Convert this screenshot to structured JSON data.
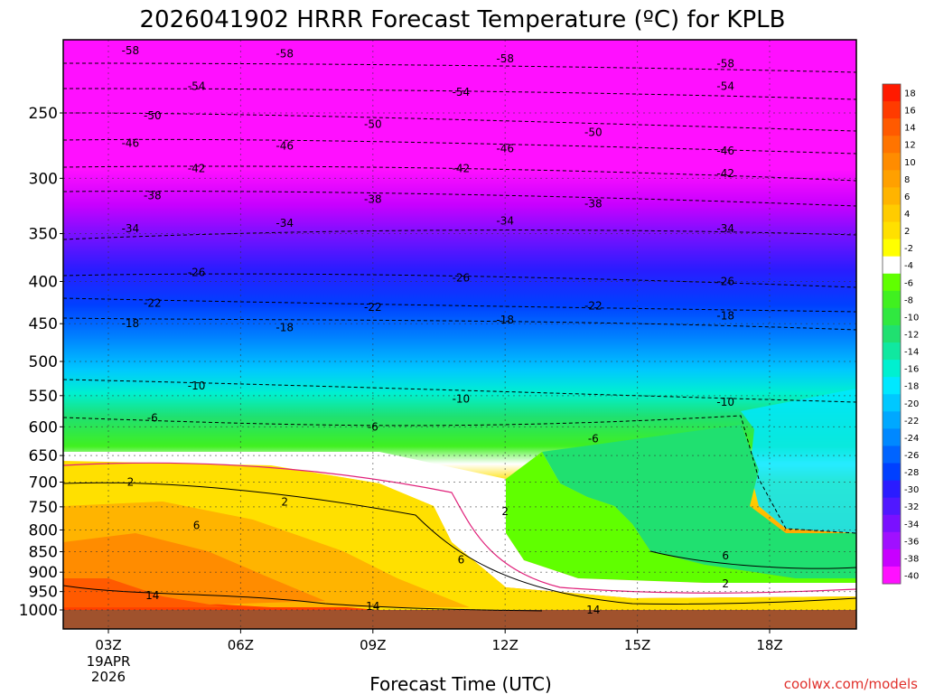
{
  "chart_data": {
    "type": "heatmap",
    "title": "2026041902 HRRR Forecast Temperature (ºC) for KPLB",
    "xlabel": "Forecast Time (UTC)",
    "ylabel": "",
    "credit": "coolwx.com/models",
    "x_ticks": [
      {
        "label": "03Z",
        "hours": 3,
        "sub": [
          "19APR",
          "2026"
        ]
      },
      {
        "label": "06Z",
        "hours": 6
      },
      {
        "label": "09Z",
        "hours": 9
      },
      {
        "label": "12Z",
        "hours": 12
      },
      {
        "label": "15Z",
        "hours": 15
      },
      {
        "label": "18Z",
        "hours": 18
      }
    ],
    "xlim_hours": [
      2,
      20
    ],
    "y_axis": "pressure (log scale, inverted)",
    "y_ticks": [
      250,
      300,
      350,
      400,
      450,
      500,
      550,
      600,
      650,
      700,
      750,
      800,
      850,
      900,
      950,
      1000
    ],
    "ylim": [
      1000,
      200
    ],
    "grid": true,
    "colorbar": {
      "levels": [
        18,
        16,
        14,
        12,
        10,
        8,
        6,
        4,
        2,
        -2,
        -4,
        -6,
        -8,
        -10,
        -12,
        -14,
        -16,
        -18,
        -20,
        -22,
        -24,
        -26,
        -28,
        -30,
        -32,
        -34,
        -36,
        -38,
        -40
      ],
      "colors": [
        "#ff1a00",
        "#ff3b00",
        "#ff5a00",
        "#ff7400",
        "#ff8c00",
        "#ffa000",
        "#ffb400",
        "#ffcc00",
        "#ffe000",
        "#ffff00",
        "#ffffff",
        "#60ff00",
        "#40f020",
        "#30e840",
        "#20e070",
        "#10e8a0",
        "#00f0d0",
        "#00e8ff",
        "#00c8ff",
        "#00a8ff",
        "#0088ff",
        "#0064ff",
        "#0040ff",
        "#2a1cff",
        "#5018ff",
        "#7a10ff",
        "#a010ff",
        "#c800ff",
        "#ff10ff"
      ]
    },
    "isotherms": [
      {
        "value": -58,
        "pressure": [
          210,
          212,
          215,
          218
        ]
      },
      {
        "value": -54,
        "pressure": [
          232,
          234,
          236,
          232
        ]
      },
      {
        "value": -50,
        "pressure": [
          252,
          254,
          258,
          264
        ]
      },
      {
        "value": -46,
        "pressure": [
          272,
          274,
          276,
          278
        ]
      },
      {
        "value": -42,
        "pressure": [
          292,
          293,
          292,
          296
        ]
      },
      {
        "value": -38,
        "pressure": [
          315,
          316,
          318,
          322
        ]
      },
      {
        "value": -34,
        "pressure": [
          345,
          340,
          338,
          345
        ]
      },
      {
        "value": -26,
        "pressure": [
          390,
          395,
          396,
          400
        ]
      },
      {
        "value": -22,
        "pressure": [
          425,
          430,
          430,
          428
        ]
      },
      {
        "value": -18,
        "pressure": [
          450,
          455,
          445,
          440
        ]
      },
      {
        "value": -10,
        "pressure": [
          535,
          540,
          555,
          560
        ]
      },
      {
        "value": -6,
        "pressure": [
          585,
          590,
          600,
          620
        ]
      },
      {
        "value": 2,
        "pressure": [
          700,
          740,
          760,
          930
        ]
      },
      {
        "value": 6,
        "pressure": [
          790,
          850,
          870,
          860
        ]
      },
      {
        "value": 14,
        "pressure": [
          960,
          970,
          990,
          1000
        ]
      }
    ]
  }
}
